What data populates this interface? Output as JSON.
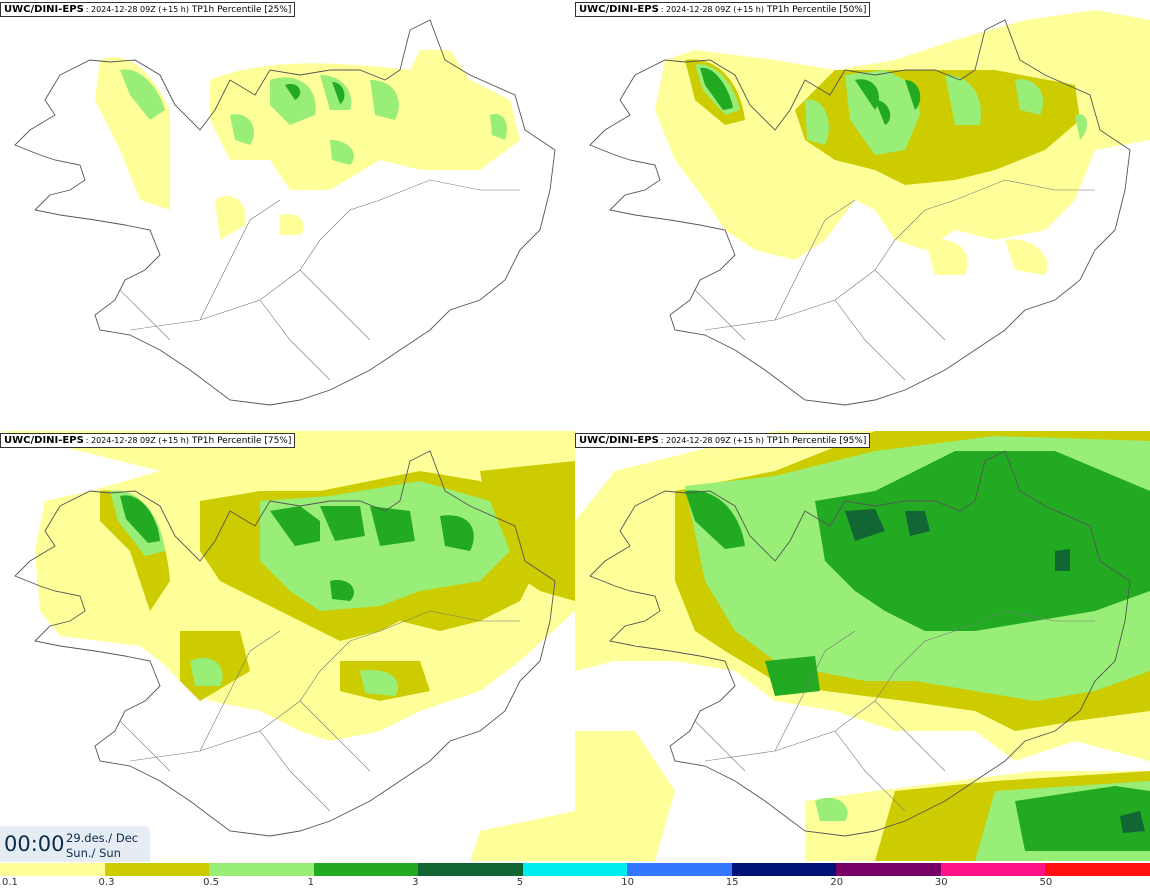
{
  "panels": [
    {
      "model": "UWC/DINI-EPS",
      "meta": ": 2024-12-28 09Z (+15 h)",
      "field": "TP1h Percentile [25%]"
    },
    {
      "model": "UWC/DINI-EPS",
      "meta": ": 2024-12-28 09Z (+15 h)",
      "field": "TP1h Percentile [50%]"
    },
    {
      "model": "UWC/DINI-EPS",
      "meta": ": 2024-12-28 09Z (+15 h)",
      "field": "TP1h Percentile [75%]"
    },
    {
      "model": "UWC/DINI-EPS",
      "meta": ": 2024-12-28 09Z (+15 h)",
      "field": "TP1h Percentile [95%]"
    }
  ],
  "timebox": {
    "time": "00:00",
    "date_line1": "29.des./ Dec",
    "date_line2": "Sun./ Sun"
  },
  "legend": {
    "colors": [
      "#ffff99",
      "#cccc00",
      "#99ee77",
      "#22aa22",
      "#116633",
      "#00eeee",
      "#3377ff",
      "#001177",
      "#770066",
      "#ff1188",
      "#ff1111"
    ],
    "labels": [
      "0.1",
      "0.3",
      "0.5",
      "1",
      "3",
      "5",
      "10",
      "15",
      "20",
      "30",
      "50"
    ]
  },
  "map_colors": {
    "light_yellow": "#ffff99",
    "olive": "#cccc00",
    "light_green": "#99ee77",
    "green": "#22aa22",
    "dark_green": "#116633",
    "outline": "#555555"
  }
}
